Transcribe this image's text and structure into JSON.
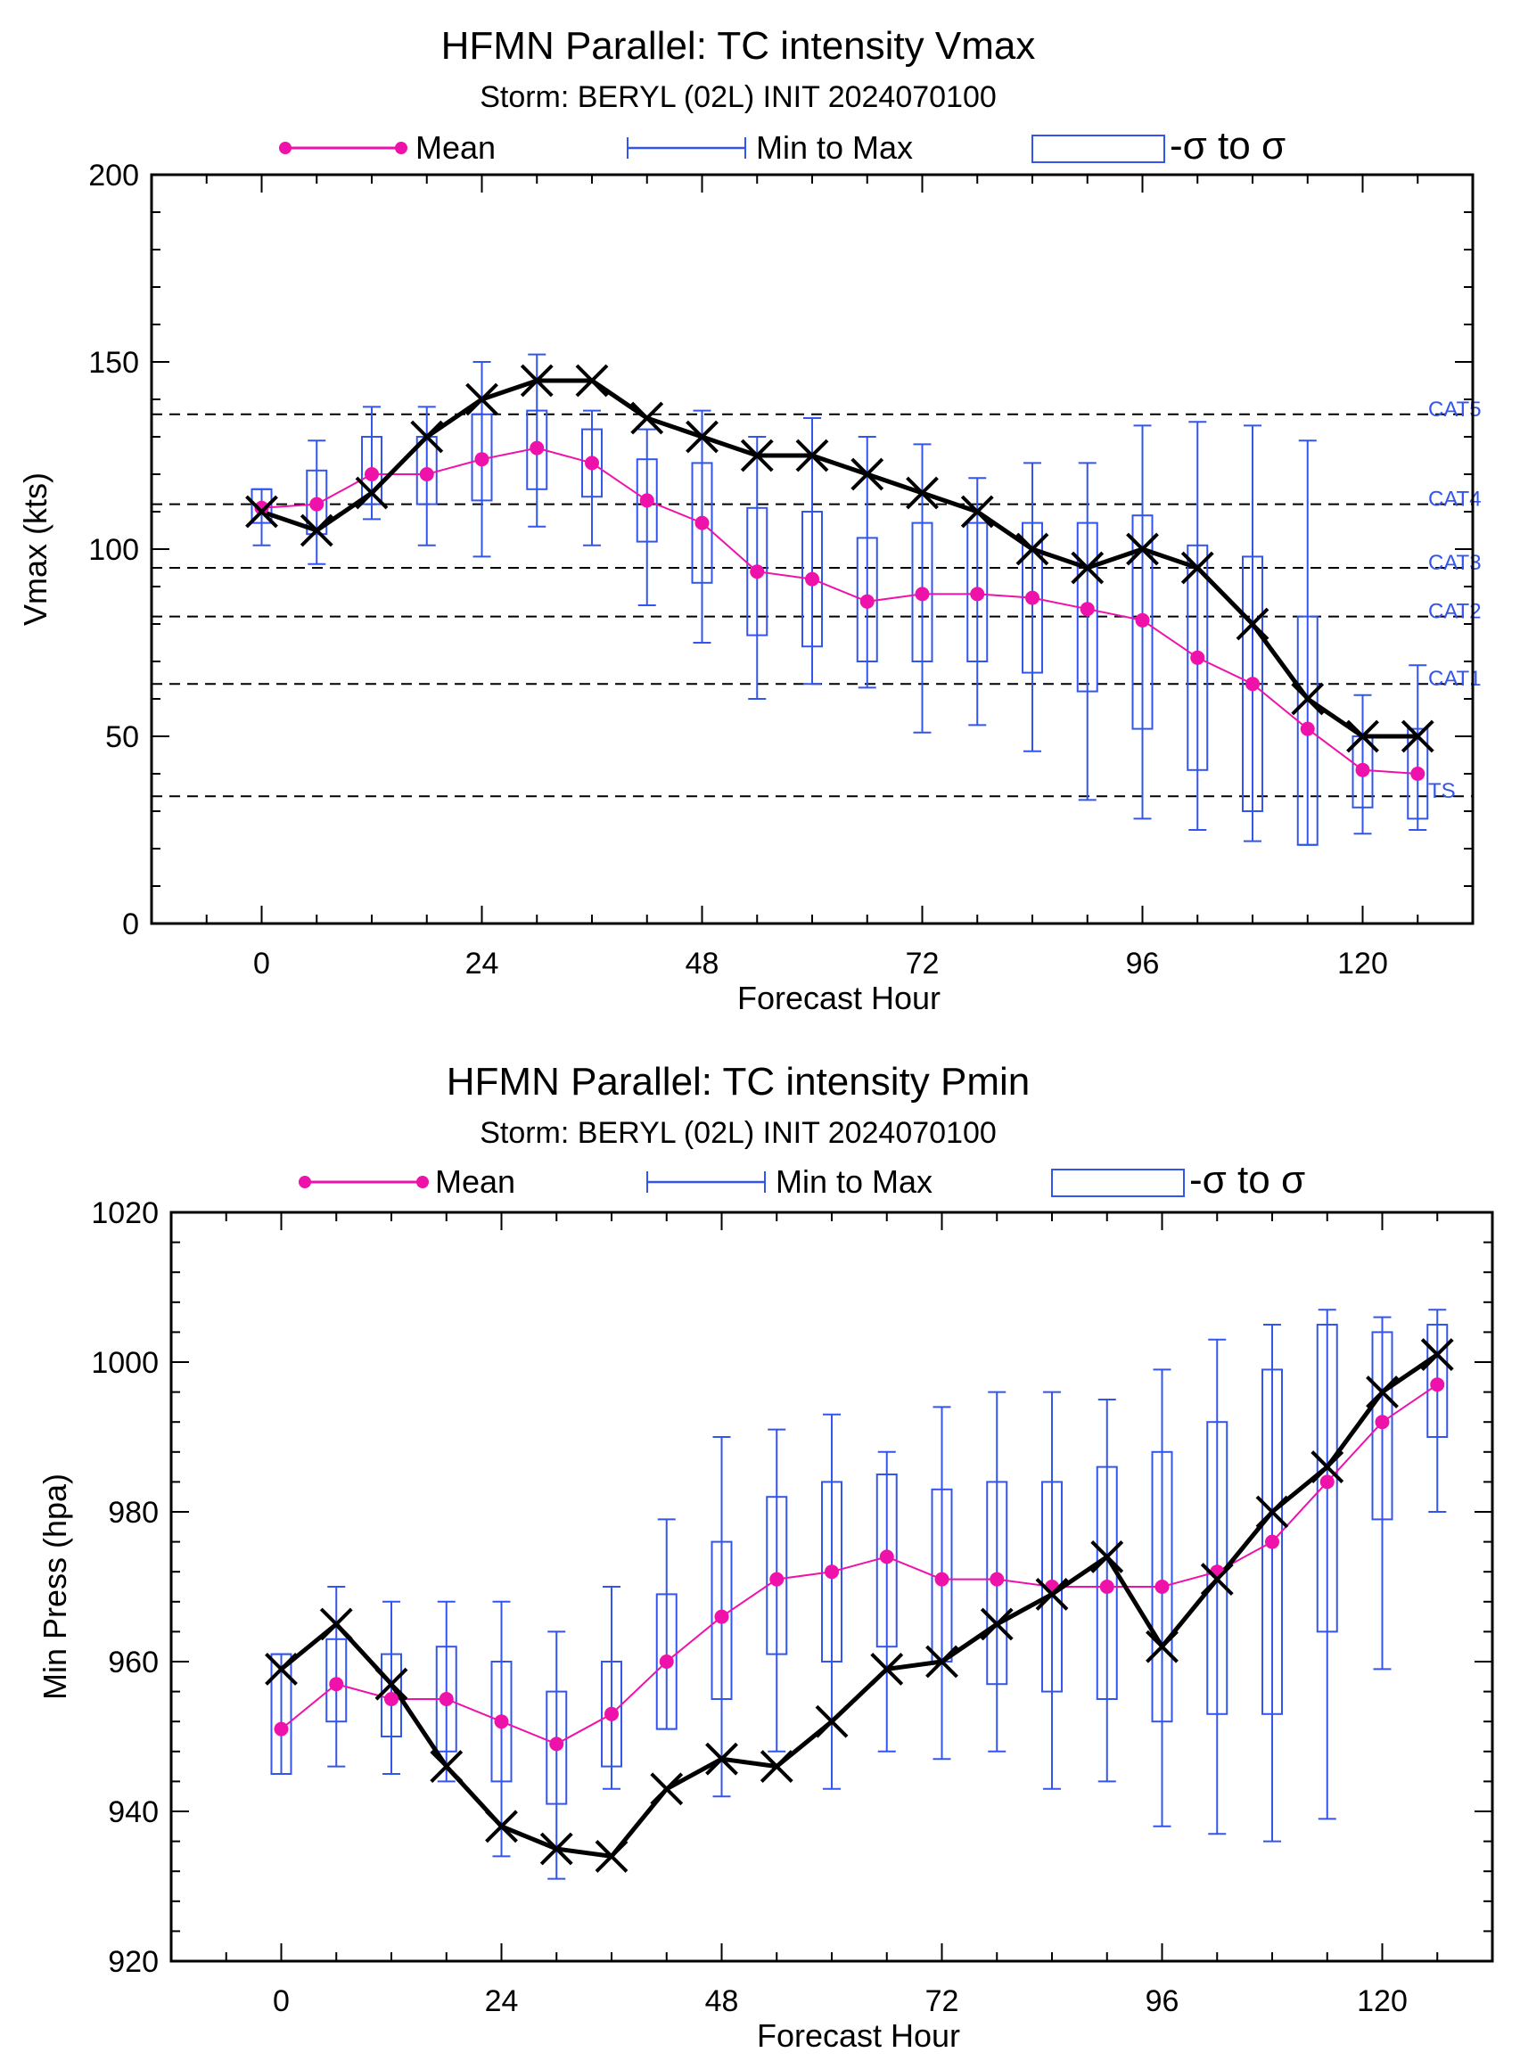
{
  "chart_data": [
    {
      "type": "line",
      "title": "HFMN Parallel: TC intensity Vmax",
      "subtitle": "Storm: BERYL (02L) INIT 2024070100",
      "xlabel": "Forecast Hour",
      "ylabel": "Vmax (kts)",
      "xlim": [
        -12,
        132
      ],
      "ylim": [
        0,
        200
      ],
      "xticks": [
        0,
        24,
        48,
        72,
        96,
        120
      ],
      "yticks": [
        0,
        50,
        100,
        150,
        200
      ],
      "legend": {
        "placement": "top",
        "mean": "Mean",
        "range": "Min to Max",
        "sigma": "-σ to σ"
      },
      "colors": {
        "mean": "#ee11aa",
        "ensemble": "#3355ee",
        "observed": "#000000",
        "threshold": "#000000"
      },
      "thresholds": [
        {
          "label": "CAT5",
          "value": 136
        },
        {
          "label": "CAT4",
          "value": 112
        },
        {
          "label": "CAT3",
          "value": 95
        },
        {
          "label": "CAT2",
          "value": 82
        },
        {
          "label": "CAT1",
          "value": 64
        },
        {
          "label": "TS",
          "value": 34
        }
      ],
      "x": [
        0,
        6,
        12,
        18,
        24,
        30,
        36,
        42,
        48,
        54,
        60,
        66,
        72,
        78,
        84,
        90,
        96,
        102,
        108,
        114,
        120,
        126
      ],
      "series": [
        {
          "role": "mean",
          "values": [
            111,
            112,
            120,
            120,
            124,
            127,
            123,
            113,
            107,
            94,
            92,
            86,
            88,
            88,
            87,
            84,
            81,
            71,
            64,
            52,
            41,
            40
          ]
        },
        {
          "role": "observed",
          "values": [
            110,
            105,
            115,
            130,
            140,
            145,
            145,
            135,
            130,
            125,
            125,
            120,
            115,
            110,
            100,
            95,
            100,
            95,
            80,
            60,
            50,
            50
          ]
        }
      ],
      "min": [
        101,
        96,
        108,
        101,
        98,
        106,
        101,
        85,
        75,
        60,
        64,
        63,
        51,
        53,
        46,
        33,
        28,
        25,
        22,
        21,
        24,
        25
      ],
      "max": [
        116,
        129,
        138,
        138,
        150,
        152,
        137,
        132,
        137,
        130,
        135,
        130,
        128,
        119,
        123,
        123,
        133,
        134,
        133,
        129,
        61,
        69
      ],
      "sigma_low": [
        107,
        104,
        112,
        112,
        113,
        116,
        114,
        102,
        91,
        77,
        74,
        70,
        70,
        70,
        67,
        62,
        52,
        41,
        30,
        21,
        31,
        28
      ],
      "sigma_high": [
        116,
        121,
        130,
        130,
        136,
        137,
        132,
        124,
        123,
        111,
        110,
        103,
        107,
        107,
        107,
        107,
        109,
        101,
        98,
        82,
        50,
        52
      ]
    },
    {
      "type": "line",
      "title": "HFMN Parallel: TC intensity Pmin",
      "subtitle": "Storm: BERYL (02L) INIT 2024070100",
      "xlabel": "Forecast Hour",
      "ylabel": "Min Press (hpa)",
      "xlim": [
        -12,
        132
      ],
      "ylim": [
        920,
        1020
      ],
      "xticks": [
        0,
        24,
        48,
        72,
        96,
        120
      ],
      "yticks": [
        920,
        940,
        960,
        980,
        1000,
        1020
      ],
      "legend": {
        "placement": "top",
        "mean": "Mean",
        "range": "Min to Max",
        "sigma": "-σ to σ"
      },
      "colors": {
        "mean": "#ee11aa",
        "ensemble": "#3355ee",
        "observed": "#000000"
      },
      "thresholds": [],
      "x": [
        0,
        6,
        12,
        18,
        24,
        30,
        36,
        42,
        48,
        54,
        60,
        66,
        72,
        78,
        84,
        90,
        96,
        102,
        108,
        114,
        120,
        126
      ],
      "series": [
        {
          "role": "mean",
          "values": [
            951,
            957,
            955,
            955,
            952,
            949,
            953,
            960,
            966,
            971,
            972,
            974,
            971,
            971,
            970,
            970,
            970,
            972,
            976,
            984,
            992,
            997
          ]
        },
        {
          "role": "observed",
          "values": [
            959,
            965,
            957,
            946,
            938,
            935,
            934,
            943,
            947,
            946,
            952,
            959,
            960,
            965,
            969,
            974,
            962,
            971,
            980,
            986,
            996,
            1001
          ]
        }
      ],
      "min": [
        945,
        946,
        945,
        944,
        934,
        931,
        943,
        951,
        942,
        948,
        943,
        948,
        947,
        948,
        943,
        944,
        938,
        937,
        936,
        939,
        959,
        980
      ],
      "max": [
        961,
        970,
        968,
        968,
        968,
        964,
        970,
        979,
        990,
        991,
        993,
        988,
        994,
        996,
        996,
        995,
        999,
        1003,
        1005,
        1007,
        1006,
        1007
      ],
      "sigma_low": [
        945,
        952,
        950,
        948,
        944,
        941,
        946,
        951,
        955,
        961,
        960,
        962,
        960,
        957,
        956,
        955,
        952,
        953,
        953,
        964,
        979,
        990
      ],
      "sigma_high": [
        961,
        963,
        961,
        962,
        960,
        956,
        960,
        969,
        976,
        982,
        984,
        985,
        983,
        984,
        984,
        986,
        988,
        992,
        999,
        1005,
        1004,
        1005
      ]
    }
  ]
}
